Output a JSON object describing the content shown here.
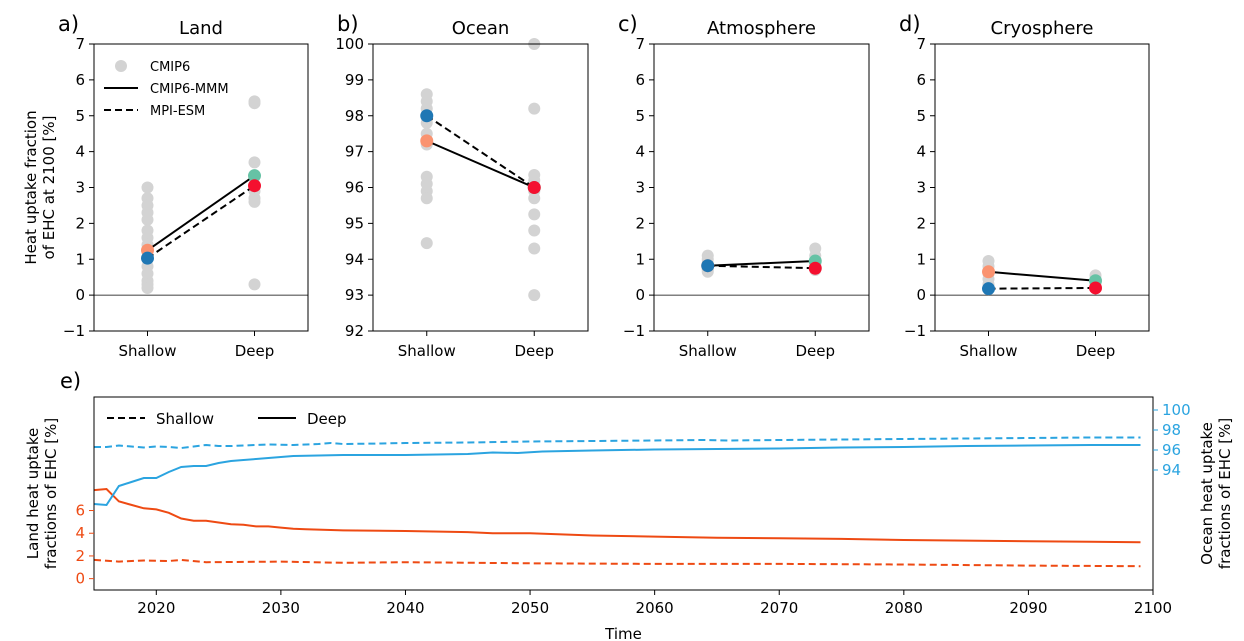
{
  "colors": {
    "cmip6_gray": "#d3d3d3",
    "mmm_shallow": "#fa9370",
    "mmm_deep": "#66c2a5",
    "mpi_shallow": "#1f77b4",
    "mpi_deep": "#f4102f",
    "land_line": "#ee4a13",
    "ocean_line": "#2ba4e0"
  },
  "chart_data": [
    {
      "type": "scatter",
      "panel_label": "a)",
      "title": "Land",
      "ylabel_lines": [
        "Heat uptake fraction",
        "of EHC at 2100 [%]"
      ],
      "categories": [
        "Shallow",
        "Deep"
      ],
      "ylim": [
        -1,
        7
      ],
      "yticks": [
        -1,
        0,
        1,
        2,
        3,
        4,
        5,
        6,
        7
      ],
      "zero_line": true,
      "legend": {
        "position": "top-left",
        "entries": [
          "CMIP6",
          "CMIP6-MMM",
          "MPI-ESM"
        ]
      },
      "cmip6_points": {
        "Shallow": [
          3.0,
          2.7,
          2.5,
          2.3,
          2.1,
          1.8,
          1.6,
          1.4,
          1.2,
          1.0,
          0.8,
          0.6,
          0.4,
          0.3,
          0.2
        ],
        "Deep": [
          5.4,
          5.35,
          3.7,
          3.3,
          2.9,
          2.7,
          2.6,
          0.3
        ]
      },
      "series": [
        {
          "name": "CMIP6-MMM",
          "style": "solid",
          "values": [
            1.25,
            3.33
          ]
        },
        {
          "name": "MPI-ESM",
          "style": "dashed",
          "values": [
            1.03,
            3.05
          ]
        }
      ]
    },
    {
      "type": "scatter",
      "panel_label": "b)",
      "title": "Ocean",
      "categories": [
        "Shallow",
        "Deep"
      ],
      "ylim": [
        92,
        100
      ],
      "yticks": [
        92,
        93,
        94,
        95,
        96,
        97,
        98,
        99,
        100
      ],
      "zero_line": false,
      "cmip6_points": {
        "Shallow": [
          98.6,
          98.4,
          98.2,
          98.0,
          97.8,
          97.5,
          97.2,
          96.3,
          96.1,
          95.9,
          95.7,
          94.45
        ],
        "Deep": [
          100.0,
          98.2,
          96.35,
          96.2,
          95.9,
          95.7,
          95.25,
          94.8,
          94.3,
          93.0
        ]
      },
      "series": [
        {
          "name": "CMIP6-MMM",
          "style": "solid",
          "values": [
            97.3,
            96.0
          ]
        },
        {
          "name": "MPI-ESM",
          "style": "dashed",
          "values": [
            98.0,
            96.0
          ]
        }
      ]
    },
    {
      "type": "scatter",
      "panel_label": "c)",
      "title": "Atmosphere",
      "categories": [
        "Shallow",
        "Deep"
      ],
      "ylim": [
        -1,
        7
      ],
      "yticks": [
        -1,
        0,
        1,
        2,
        3,
        4,
        5,
        6,
        7
      ],
      "zero_line": true,
      "cmip6_points": {
        "Shallow": [
          1.1,
          1.0,
          0.9,
          0.85,
          0.8,
          0.75,
          0.7,
          0.65
        ],
        "Deep": [
          1.3,
          1.1,
          1.0,
          0.9,
          0.85,
          0.8,
          0.75,
          0.7
        ]
      },
      "series": [
        {
          "name": "CMIP6-MMM",
          "style": "solid",
          "values": [
            0.82,
            0.95
          ]
        },
        {
          "name": "MPI-ESM",
          "style": "dashed",
          "values": [
            0.82,
            0.75
          ]
        }
      ]
    },
    {
      "type": "scatter",
      "panel_label": "d)",
      "title": "Cryosphere",
      "categories": [
        "Shallow",
        "Deep"
      ],
      "ylim": [
        -1,
        7
      ],
      "yticks": [
        -1,
        0,
        1,
        2,
        3,
        4,
        5,
        6,
        7
      ],
      "zero_line": true,
      "cmip6_points": {
        "Shallow": [
          0.95,
          0.8,
          0.6,
          0.45,
          0.3,
          0.2
        ],
        "Deep": [
          0.55,
          0.45,
          0.4,
          0.3,
          0.2
        ]
      },
      "series": [
        {
          "name": "CMIP6-MMM",
          "style": "solid",
          "values": [
            0.65,
            0.4
          ]
        },
        {
          "name": "MPI-ESM",
          "style": "dashed",
          "values": [
            0.18,
            0.2
          ]
        }
      ]
    },
    {
      "type": "line",
      "panel_label": "e)",
      "xlabel": "Time",
      "xlim": [
        2015,
        2100
      ],
      "xticks": [
        2020,
        2030,
        2040,
        2050,
        2060,
        2070,
        2080,
        2090,
        2100
      ],
      "left_axis": {
        "label_lines": [
          "Land heat uptake",
          "fractions of EHC [%]"
        ],
        "ylim": [
          -1,
          16
        ],
        "yticks": [
          0,
          2,
          4,
          6
        ]
      },
      "right_axis": {
        "label_lines": [
          "Ocean heat uptake",
          "fractions of EHC [%]"
        ],
        "ylim": [
          82,
          101.3
        ],
        "yticks": [
          94,
          96,
          98,
          100
        ]
      },
      "legend": {
        "position": "top-left",
        "entries": [
          "Shallow",
          "Deep"
        ]
      },
      "series": [
        {
          "axis": "left",
          "style": "solid",
          "x": [
            2015,
            2016,
            2017,
            2018,
            2019,
            2020,
            2021,
            2022,
            2023,
            2024,
            2025,
            2026,
            2027,
            2028,
            2029,
            2030,
            2031,
            2032,
            2035,
            2040,
            2045,
            2047,
            2050,
            2055,
            2060,
            2065,
            2070,
            2075,
            2080,
            2085,
            2090,
            2095,
            2099
          ],
          "values": [
            7.8,
            7.9,
            6.8,
            6.5,
            6.2,
            6.1,
            5.8,
            5.3,
            5.1,
            5.1,
            4.95,
            4.8,
            4.75,
            4.6,
            4.6,
            4.5,
            4.4,
            4.35,
            4.25,
            4.2,
            4.1,
            4.0,
            4.0,
            3.8,
            3.7,
            3.6,
            3.55,
            3.5,
            3.4,
            3.35,
            3.3,
            3.25,
            3.2
          ]
        },
        {
          "axis": "left",
          "style": "dashed",
          "x": [
            2015,
            2017,
            2019,
            2021,
            2022,
            2024,
            2030,
            2035,
            2040,
            2050,
            2060,
            2070,
            2080,
            2090,
            2099
          ],
          "values": [
            1.65,
            1.5,
            1.6,
            1.55,
            1.65,
            1.45,
            1.5,
            1.4,
            1.45,
            1.35,
            1.3,
            1.3,
            1.25,
            1.15,
            1.1
          ]
        },
        {
          "axis": "right",
          "style": "solid",
          "x": [
            2015,
            2016,
            2017,
            2018,
            2019,
            2020,
            2021,
            2022,
            2023,
            2024,
            2025,
            2026,
            2027,
            2028,
            2029,
            2030,
            2031,
            2033,
            2035,
            2040,
            2045,
            2047,
            2049,
            2051,
            2055,
            2060,
            2065,
            2070,
            2075,
            2080,
            2085,
            2090,
            2095,
            2099
          ],
          "values": [
            90.6,
            90.5,
            92.4,
            92.8,
            93.2,
            93.2,
            93.8,
            94.3,
            94.4,
            94.4,
            94.7,
            94.9,
            95.0,
            95.1,
            95.2,
            95.3,
            95.4,
            95.45,
            95.5,
            95.5,
            95.6,
            95.75,
            95.7,
            95.85,
            95.95,
            96.05,
            96.1,
            96.15,
            96.25,
            96.3,
            96.4,
            96.45,
            96.5,
            96.5
          ]
        },
        {
          "axis": "right",
          "style": "dashed",
          "x": [
            2015,
            2016,
            2017,
            2018,
            2019,
            2020,
            2021,
            2022,
            2023,
            2024,
            2025,
            2026,
            2027,
            2029,
            2031,
            2033,
            2034,
            2035,
            2038,
            2040,
            2045,
            2050,
            2055,
            2060,
            2064,
            2066,
            2070,
            2075,
            2080,
            2085,
            2090,
            2095,
            2099
          ],
          "values": [
            96.3,
            96.3,
            96.45,
            96.35,
            96.25,
            96.35,
            96.3,
            96.2,
            96.35,
            96.5,
            96.4,
            96.4,
            96.45,
            96.55,
            96.5,
            96.6,
            96.7,
            96.6,
            96.65,
            96.7,
            96.75,
            96.85,
            96.9,
            96.95,
            97.0,
            96.95,
            97.0,
            97.05,
            97.1,
            97.15,
            97.2,
            97.25,
            97.25
          ]
        }
      ]
    }
  ]
}
